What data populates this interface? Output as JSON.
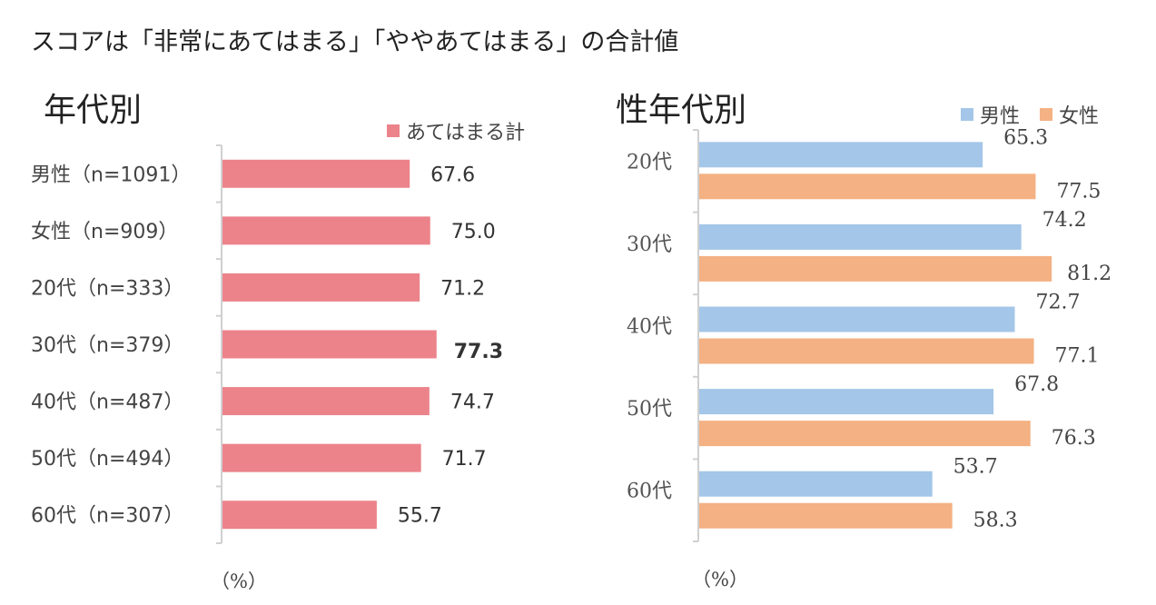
{
  "page_title": "スコアは「非常にあてはまる」「ややあてはまる」の合計値",
  "colors": {
    "pink": "#ec838b",
    "blue": "#a4c6e8",
    "orange": "#f4b183"
  },
  "chart_data": [
    {
      "type": "bar",
      "orientation": "horizontal",
      "title": "年代別",
      "legend": [
        "あてはまる計"
      ],
      "categories": [
        "男性（n=1091）",
        "女性（n=909）",
        "20代（n=333）",
        "30代（n=379）",
        "40代（n=487）",
        "50代（n=494）",
        "60代（n=307）"
      ],
      "series": [
        {
          "name": "あてはまる計",
          "values": [
            67.6,
            75.0,
            71.2,
            77.3,
            74.7,
            71.7,
            55.7
          ]
        }
      ],
      "value_labels": [
        "67.6",
        "75.0",
        "71.2",
        "77.3",
        "74.7",
        "71.7",
        "55.7"
      ],
      "highlight_index": 3,
      "xlim": [
        0,
        100
      ],
      "unit": "（%）"
    },
    {
      "type": "bar",
      "orientation": "horizontal",
      "title": "性年代別",
      "legend": [
        "男性",
        "女性"
      ],
      "categories": [
        "20代",
        "30代",
        "40代",
        "50代",
        "60代"
      ],
      "series": [
        {
          "name": "男性",
          "values": [
            65.3,
            74.2,
            72.7,
            67.8,
            53.7
          ],
          "labels": [
            "65.3",
            "74.2",
            "72.7",
            "67.8",
            "53.7"
          ]
        },
        {
          "name": "女性",
          "values": [
            77.5,
            81.2,
            77.1,
            76.3,
            58.3
          ],
          "labels": [
            "77.5",
            "81.2",
            "77.1",
            "76.3",
            "58.3"
          ]
        }
      ],
      "highlight": {
        "series": 1,
        "index": 1
      },
      "xlim": [
        0,
        100
      ],
      "unit": "（%）"
    }
  ]
}
